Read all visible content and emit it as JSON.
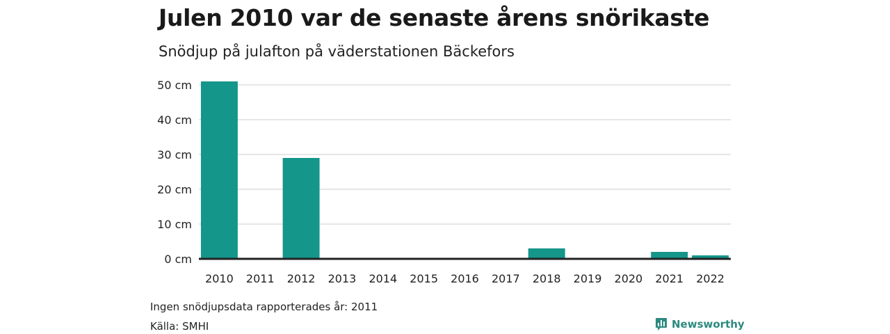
{
  "chart_data": {
    "type": "bar",
    "title": "Julen 2010 var de senaste årens snörikaste",
    "subtitle": "Snödjup på julafton på väderstationen Bäckefors",
    "categories": [
      "2010",
      "2011",
      "2012",
      "2013",
      "2014",
      "2015",
      "2016",
      "2017",
      "2018",
      "2019",
      "2020",
      "2021",
      "2022"
    ],
    "values": [
      51,
      null,
      29,
      0,
      0,
      0,
      0,
      0,
      3,
      0,
      0,
      2,
      1
    ],
    "ylim": [
      0,
      50
    ],
    "yticks": [
      0,
      10,
      20,
      30,
      40,
      50
    ],
    "ytick_labels": [
      "0 cm",
      "10 cm",
      "20 cm",
      "30 cm",
      "40 cm",
      "50 cm"
    ],
    "xlabel": "",
    "ylabel": "",
    "grid": true,
    "bar_color": "#14968a"
  },
  "footer": {
    "note": "Ingen snödjupsdata rapporterades år: 2011",
    "source": "Källa: SMHI",
    "brand": "Newsworthy"
  },
  "colors": {
    "brand": "#2c8a80",
    "axis": "#222222",
    "grid": "#dddddd"
  }
}
